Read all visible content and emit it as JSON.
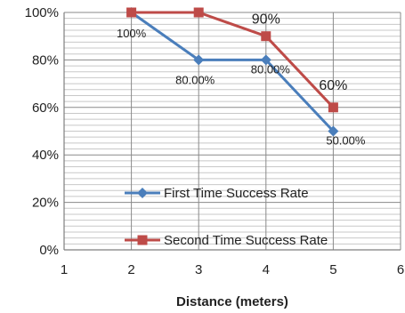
{
  "chart_data": {
    "type": "line",
    "xlabel": "Distance (meters)",
    "ylabel": "",
    "xlim": [
      1,
      6
    ],
    "ylim": [
      0,
      100
    ],
    "x_ticks": [
      "1",
      "2",
      "3",
      "4",
      "5",
      "6"
    ],
    "y_ticks": [
      "0%",
      "20%",
      "40%",
      "60%",
      "80%",
      "100%"
    ],
    "grid": true,
    "legend_position": "inside-lower",
    "series": [
      {
        "name": "First Time Success Rate",
        "color": "#4a7ebb",
        "marker": "diamond",
        "points": [
          {
            "x": 2,
            "y": 100,
            "label": "100%"
          },
          {
            "x": 3,
            "y": 80,
            "label": "80.00%"
          },
          {
            "x": 4,
            "y": 80,
            "label": "80.00%"
          },
          {
            "x": 5,
            "y": 50,
            "label": "50.00%"
          }
        ]
      },
      {
        "name": "Second Time Success Rate",
        "color": "#be4b48",
        "marker": "square",
        "points": [
          {
            "x": 2,
            "y": 100,
            "label": ""
          },
          {
            "x": 3,
            "y": 100,
            "label": "100%"
          },
          {
            "x": 4,
            "y": 90,
            "label": "90%"
          },
          {
            "x": 5,
            "y": 60,
            "label": "60%"
          }
        ]
      }
    ]
  }
}
